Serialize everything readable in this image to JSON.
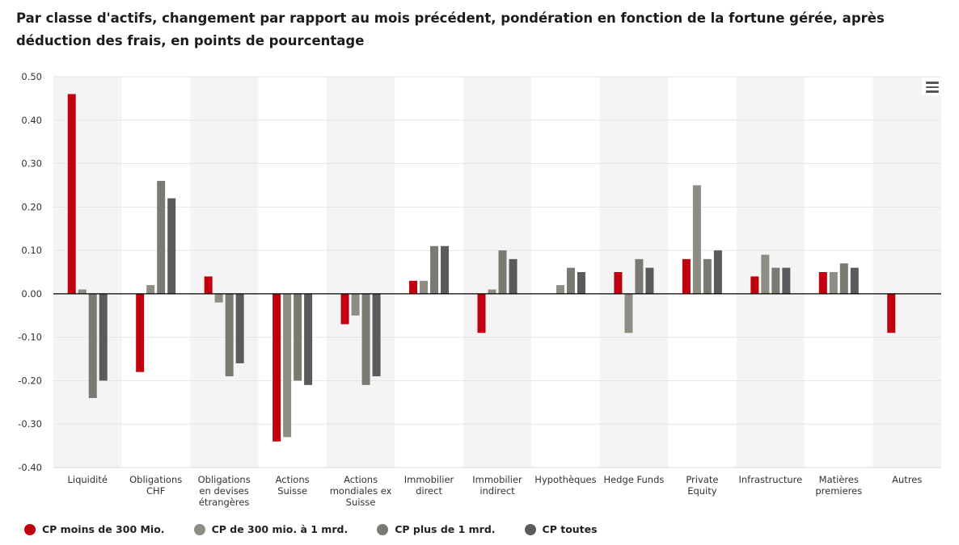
{
  "title": "Par classe d'actifs, changement par rapport au mois précédent, pondération en fonction de la fortune gérée, après déduction des frais, en points de pourcentage",
  "menu_icon": "hamburger-menu-icon",
  "chart_data": {
    "type": "bar",
    "title": "Par classe d'actifs, changement par rapport au mois précédent, pondération en fonction de la fortune gérée, après déduction des frais, en points de pourcentage",
    "xlabel": "",
    "ylabel": "",
    "ylim": [
      -0.4,
      0.5
    ],
    "yticks": [
      0.5,
      0.4,
      0.3,
      0.2,
      0.1,
      0.0,
      -0.1,
      -0.2,
      -0.3,
      -0.4
    ],
    "ytick_labels": [
      "0.50",
      "0.40",
      "0.30",
      "0.20",
      "0.10",
      "0.00",
      "-0.10",
      "-0.20",
      "-0.30",
      "-0.40"
    ],
    "grid": true,
    "alternating_bands": true,
    "legend_position": "bottom-left",
    "categories": [
      [
        "Liquidité"
      ],
      [
        "Obligations",
        "CHF"
      ],
      [
        "Obligations",
        "en devises",
        "étrangères"
      ],
      [
        "Actions",
        "Suisse"
      ],
      [
        "Actions",
        "mondiales ex",
        "Suisse"
      ],
      [
        "Immobilier",
        "direct"
      ],
      [
        "Immobilier",
        "indirect"
      ],
      [
        "Hypothèques"
      ],
      [
        "Hedge Funds"
      ],
      [
        "Private",
        "Equity"
      ],
      [
        "Infrastructure"
      ],
      [
        "Matières",
        "premieres"
      ],
      [
        "Autres"
      ]
    ],
    "series": [
      {
        "name": "CP moins de 300 Mio.",
        "color": "#c1000f",
        "values": [
          0.46,
          -0.18,
          0.04,
          -0.34,
          -0.07,
          0.03,
          -0.09,
          0.0,
          0.05,
          0.08,
          0.04,
          0.05,
          -0.09
        ]
      },
      {
        "name": "CP de 300 mio. à 1 mrd.",
        "color": "#8e8d83",
        "values": [
          0.01,
          0.02,
          -0.02,
          -0.33,
          -0.05,
          0.03,
          0.01,
          0.02,
          -0.09,
          0.25,
          0.09,
          0.05,
          0.0
        ]
      },
      {
        "name": "CP plus de 1 mrd.",
        "color": "#7b7a72",
        "values": [
          -0.24,
          0.26,
          -0.19,
          -0.2,
          -0.21,
          0.11,
          0.1,
          0.06,
          0.08,
          0.08,
          0.06,
          0.07,
          0.0
        ]
      },
      {
        "name": "CP toutes",
        "color": "#5a5b5a",
        "values": [
          -0.2,
          0.22,
          -0.16,
          -0.21,
          -0.19,
          0.11,
          0.08,
          0.05,
          0.06,
          0.1,
          0.06,
          0.06,
          0.0
        ]
      }
    ]
  }
}
